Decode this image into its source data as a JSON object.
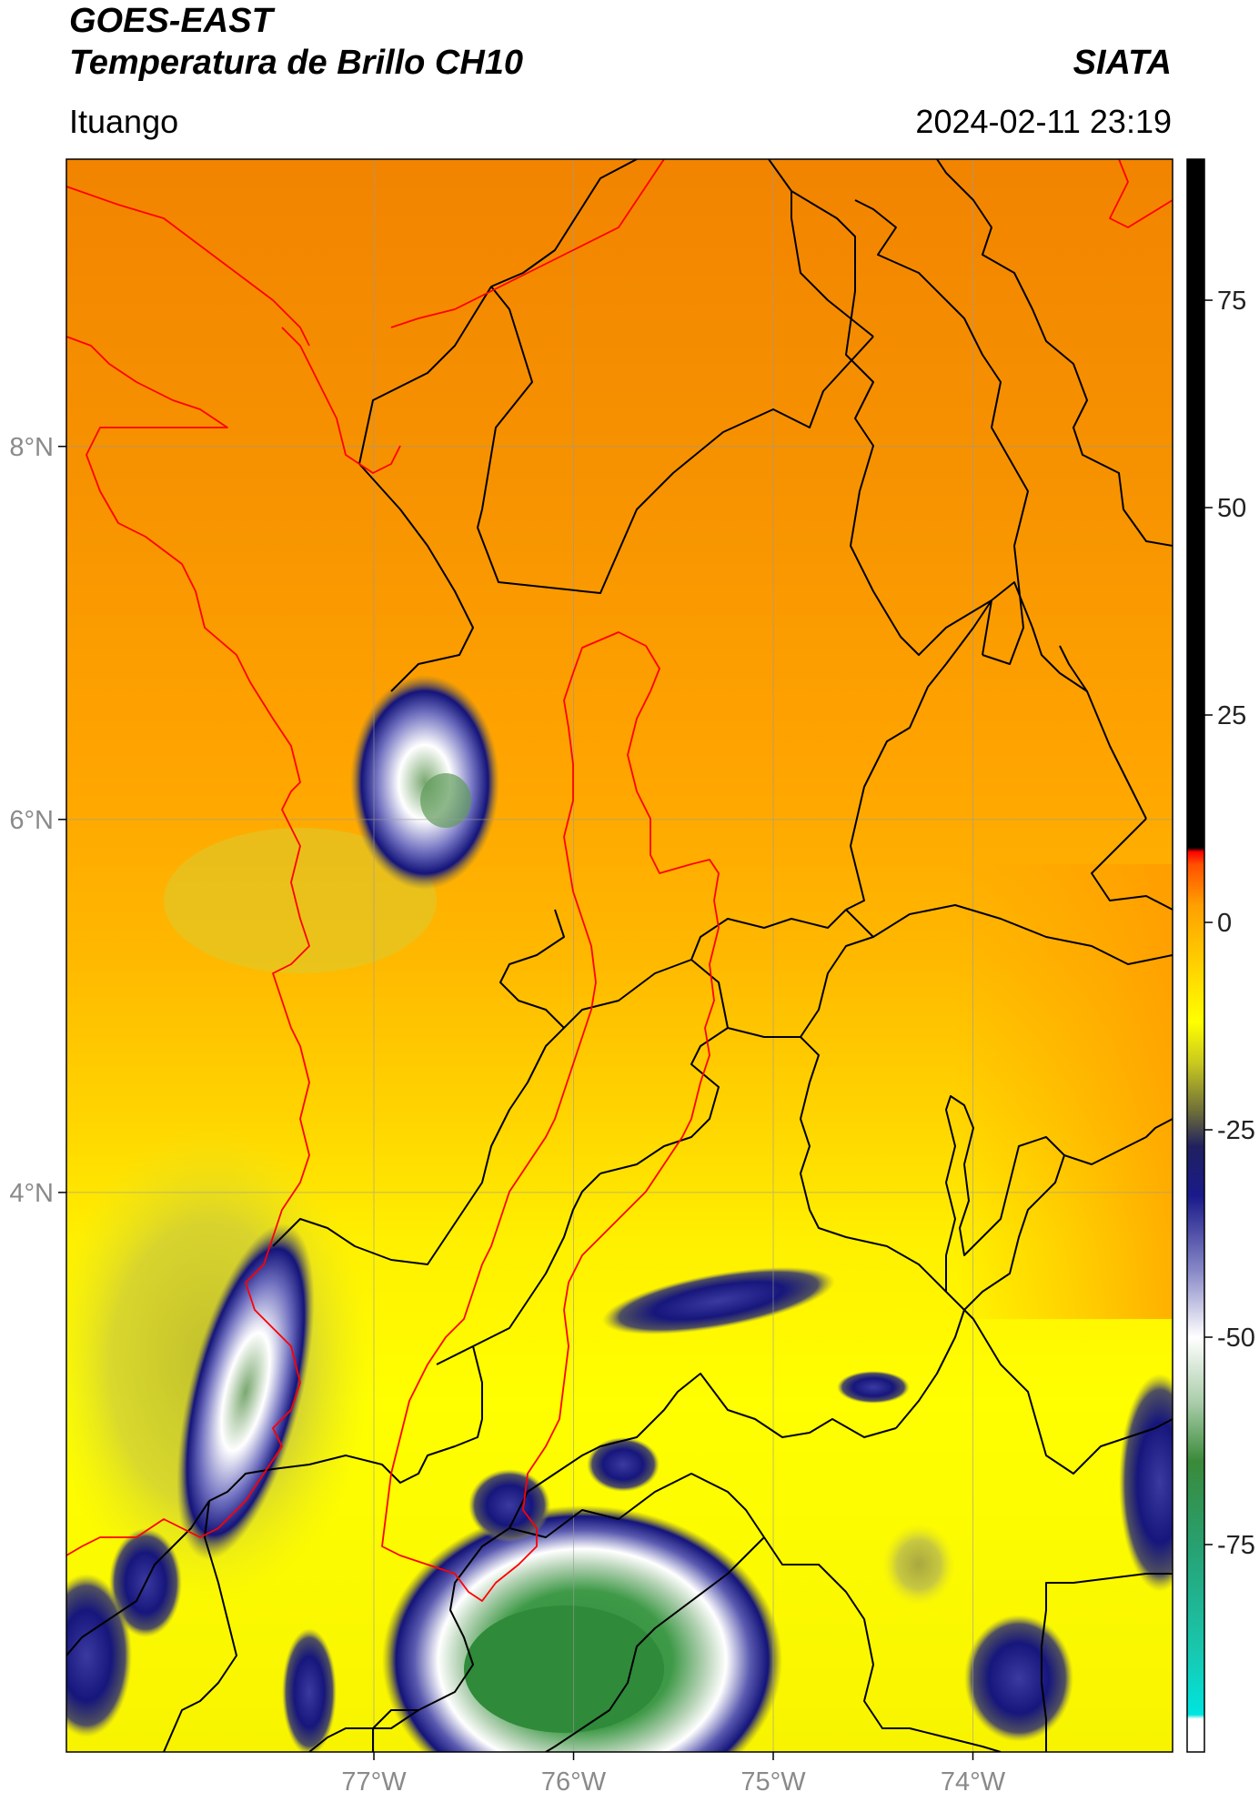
{
  "header": {
    "title_line1": "GOES-EAST",
    "title_line2": "Temperatura de Brillo CH10",
    "brand": "SIATA",
    "region": "Ituango",
    "datetime": "2024-02-11 23:19"
  },
  "map": {
    "lon_ticks": [
      {
        "value": -77,
        "label": "77°W"
      },
      {
        "value": -76,
        "label": "76°W"
      },
      {
        "value": -75,
        "label": "75°W"
      },
      {
        "value": -74,
        "label": "74°W"
      }
    ],
    "lat_ticks": [
      {
        "value": 8,
        "label": "8°N"
      },
      {
        "value": 6,
        "label": "6°N"
      },
      {
        "value": 4,
        "label": "4°N"
      }
    ],
    "lon_range": [
      -78.54,
      -73.0
    ],
    "lat_range": [
      1.0,
      9.54
    ],
    "colors": {
      "warm_orange": "#f48a00",
      "orange": "#ffa000",
      "yellow": "#ffff00",
      "olive": "#c8cc30",
      "navy": "#14147a",
      "white": "#ffffff",
      "green": "#3a8a3a",
      "border_black": "#000000",
      "basin_red": "#ff0000"
    }
  },
  "colorbar": {
    "ticks": [
      {
        "value": 75,
        "label": "75"
      },
      {
        "value": 50,
        "label": "50"
      },
      {
        "value": 25,
        "label": "25"
      },
      {
        "value": 0,
        "label": "0"
      },
      {
        "value": -25,
        "label": "-25"
      },
      {
        "value": -50,
        "label": "-50"
      },
      {
        "value": -75,
        "label": "-75"
      }
    ],
    "range": [
      -100,
      92
    ],
    "stops": [
      {
        "value": -100,
        "color": "#ffffff"
      },
      {
        "value": -96,
        "color": "#ffffff"
      },
      {
        "value": -95.5,
        "color": "#00e5e0"
      },
      {
        "value": -88,
        "color": "#18c8b0"
      },
      {
        "value": -75,
        "color": "#28a070"
      },
      {
        "value": -65,
        "color": "#3a8a3a"
      },
      {
        "value": -58,
        "color": "#a8cca8"
      },
      {
        "value": -50,
        "color": "#ffffff"
      },
      {
        "value": -42,
        "color": "#8888c8"
      },
      {
        "value": -33,
        "color": "#1a1a8a"
      },
      {
        "value": -27,
        "color": "#202060"
      },
      {
        "value": -23,
        "color": "#6a6a3a"
      },
      {
        "value": -17,
        "color": "#c8c820"
      },
      {
        "value": -12,
        "color": "#ffff00"
      },
      {
        "value": -5,
        "color": "#ffd000"
      },
      {
        "value": 2,
        "color": "#ffa000"
      },
      {
        "value": 7,
        "color": "#ff5000"
      },
      {
        "value": 8.5,
        "color": "#ff0000"
      },
      {
        "value": 9,
        "color": "#000000"
      },
      {
        "value": 92,
        "color": "#000000"
      }
    ]
  }
}
